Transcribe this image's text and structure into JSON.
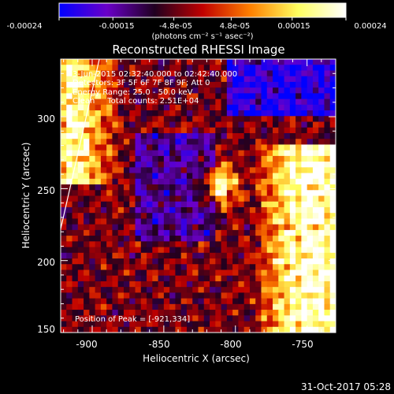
{
  "colorbar": {
    "tick_labels": [
      "-0.00024",
      "-0.00015",
      "-4.8e-05",
      "4.8e-05",
      "0.00015",
      "0.00024"
    ],
    "unit_label": "(photons cm⁻² s⁻¹ asec⁻²)",
    "range": [
      -0.00024,
      0.00024
    ],
    "colors": [
      "#0000ff",
      "#6a00c8",
      "#200020",
      "#c00000",
      "#ff8000",
      "#ffff60",
      "#ffffff"
    ]
  },
  "chart_data": {
    "type": "heatmap",
    "title": "Reconstructed RHESSI Image",
    "xlabel": "Heliocentric X (arcsec)",
    "ylabel": "Heliocentric Y (arcsec)",
    "xlim": [
      -922,
      -730
    ],
    "ylim": [
      150,
      340
    ],
    "x_ticks": [
      -900,
      -850,
      -800,
      -750
    ],
    "y_ticks": [
      150,
      200,
      250,
      300
    ],
    "annotations": [
      "3-Jun-2015 02:32:40.000 to 02:42:40.000",
      "Detectors: 3F 5F 6F 7F 8F 9F; Att 0",
      "Energy Range: 25.0 - 50.0 keV",
      "Clean     Total counts: 2.51E+04"
    ],
    "peak_label": "Position of Peak = [-921,334]",
    "peak_position": [
      -921,
      334
    ],
    "limb_line": [
      [
        -922,
        222
      ],
      [
        -895,
        340
      ]
    ],
    "source_center": [
      -813,
      255
    ]
  },
  "footer": {
    "timestamp": "31-Oct-2017 05:28"
  }
}
